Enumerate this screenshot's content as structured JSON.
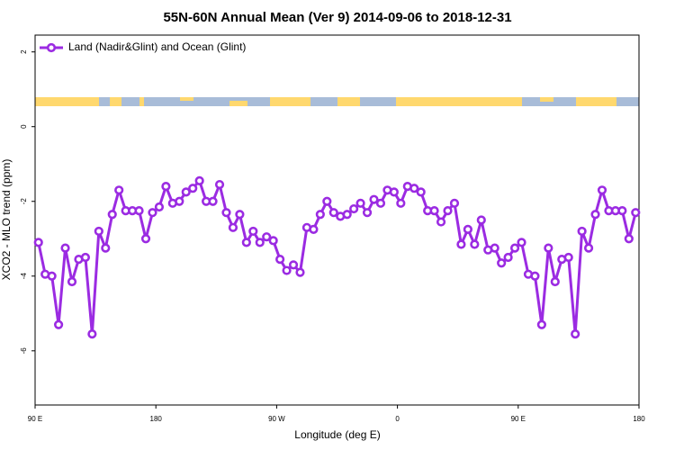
{
  "chart_data": {
    "type": "line",
    "title": "55N-60N Annual Mean (Ver 9)   2014-09-06 to 2018-12-31",
    "x_label": "Longitude (deg E)",
    "y_label": "XCO2 - MLO trend (ppm)",
    "x": [
      92.5,
      97.5,
      102.5,
      107.5,
      112.5,
      117.5,
      122.5,
      127.5,
      132.5,
      137.5,
      142.5,
      147.5,
      152.5,
      157.5,
      162.5,
      167.5,
      172.5,
      177.5,
      182.5,
      187.5,
      192.5,
      197.5,
      202.5,
      207.5,
      212.5,
      217.5,
      222.5,
      227.5,
      232.5,
      237.5,
      242.5,
      247.5,
      252.5,
      257.5,
      262.5,
      267.5,
      272.5,
      277.5,
      282.5,
      287.5,
      292.5,
      297.5,
      302.5,
      307.5,
      312.5,
      317.5,
      322.5,
      327.5,
      332.5,
      337.5,
      342.5,
      347.5,
      352.5,
      357.5,
      362.5,
      367.5,
      372.5,
      377.5,
      382.5,
      387.5,
      392.5,
      397.5,
      402.5,
      407.5,
      412.5,
      417.5,
      422.5,
      427.5,
      432.5,
      437.5,
      442.5,
      447.5,
      452.5,
      457.5,
      462.5,
      467.5,
      472.5,
      477.5,
      482.5,
      487.5,
      492.5,
      497.5,
      502.5,
      507.5,
      512.5,
      517.5,
      522.5,
      527.5,
      532.5,
      537.5
    ],
    "series": [
      {
        "name": "Land (Nadir&Glint) and Ocean (Glint)",
        "color": "#9b2be2",
        "values": [
          -3.1,
          -3.95,
          -4.0,
          -5.3,
          -3.25,
          -4.15,
          -3.55,
          -3.5,
          -5.55,
          -2.8,
          -3.25,
          -2.35,
          -1.7,
          -2.25,
          -2.25,
          -2.25,
          -3.0,
          -2.3,
          -2.15,
          -1.6,
          -2.05,
          -2.0,
          -1.75,
          -1.65,
          -1.45,
          -2.0,
          -2.0,
          -1.55,
          -2.3,
          -2.7,
          -2.35,
          -3.1,
          -2.8,
          -3.1,
          -2.95,
          -3.05,
          -3.55,
          -3.85,
          -3.7,
          -3.9,
          -2.7,
          -2.75,
          -2.35,
          -2.0,
          -2.3,
          -2.4,
          -2.35,
          -2.2,
          -2.05,
          -2.3,
          -1.95,
          -2.05,
          -1.7,
          -1.75,
          -2.05,
          -1.6,
          -1.65,
          -1.75,
          -2.25,
          -2.25,
          -2.55,
          -2.25,
          -2.05,
          -3.15,
          -2.75,
          -3.15,
          -2.5,
          -3.3,
          -3.25,
          -3.65,
          -3.5,
          -3.25,
          -3.1,
          -3.95,
          -4.0,
          -5.3,
          -3.25,
          -4.15,
          -3.55,
          -3.5,
          -5.55,
          -2.8,
          -3.25,
          -2.35,
          -1.7,
          -2.25,
          -2.25,
          -2.25,
          -3.0,
          -2.3
        ]
      }
    ],
    "xlim": [
      90,
      540
    ],
    "xticks": [
      {
        "value": 90,
        "label": "90 E"
      },
      180,
      {
        "value": 270,
        "label": "90 W"
      },
      {
        "value": 360,
        "label": "0"
      },
      {
        "value": 450,
        "label": "90 E"
      },
      {
        "value": 540,
        "label": "180"
      }
    ],
    "ylim": [
      -7.45,
      2.45
    ],
    "yticks": [
      -6,
      -4,
      -2,
      0,
      2
    ],
    "legend": "top-left"
  }
}
